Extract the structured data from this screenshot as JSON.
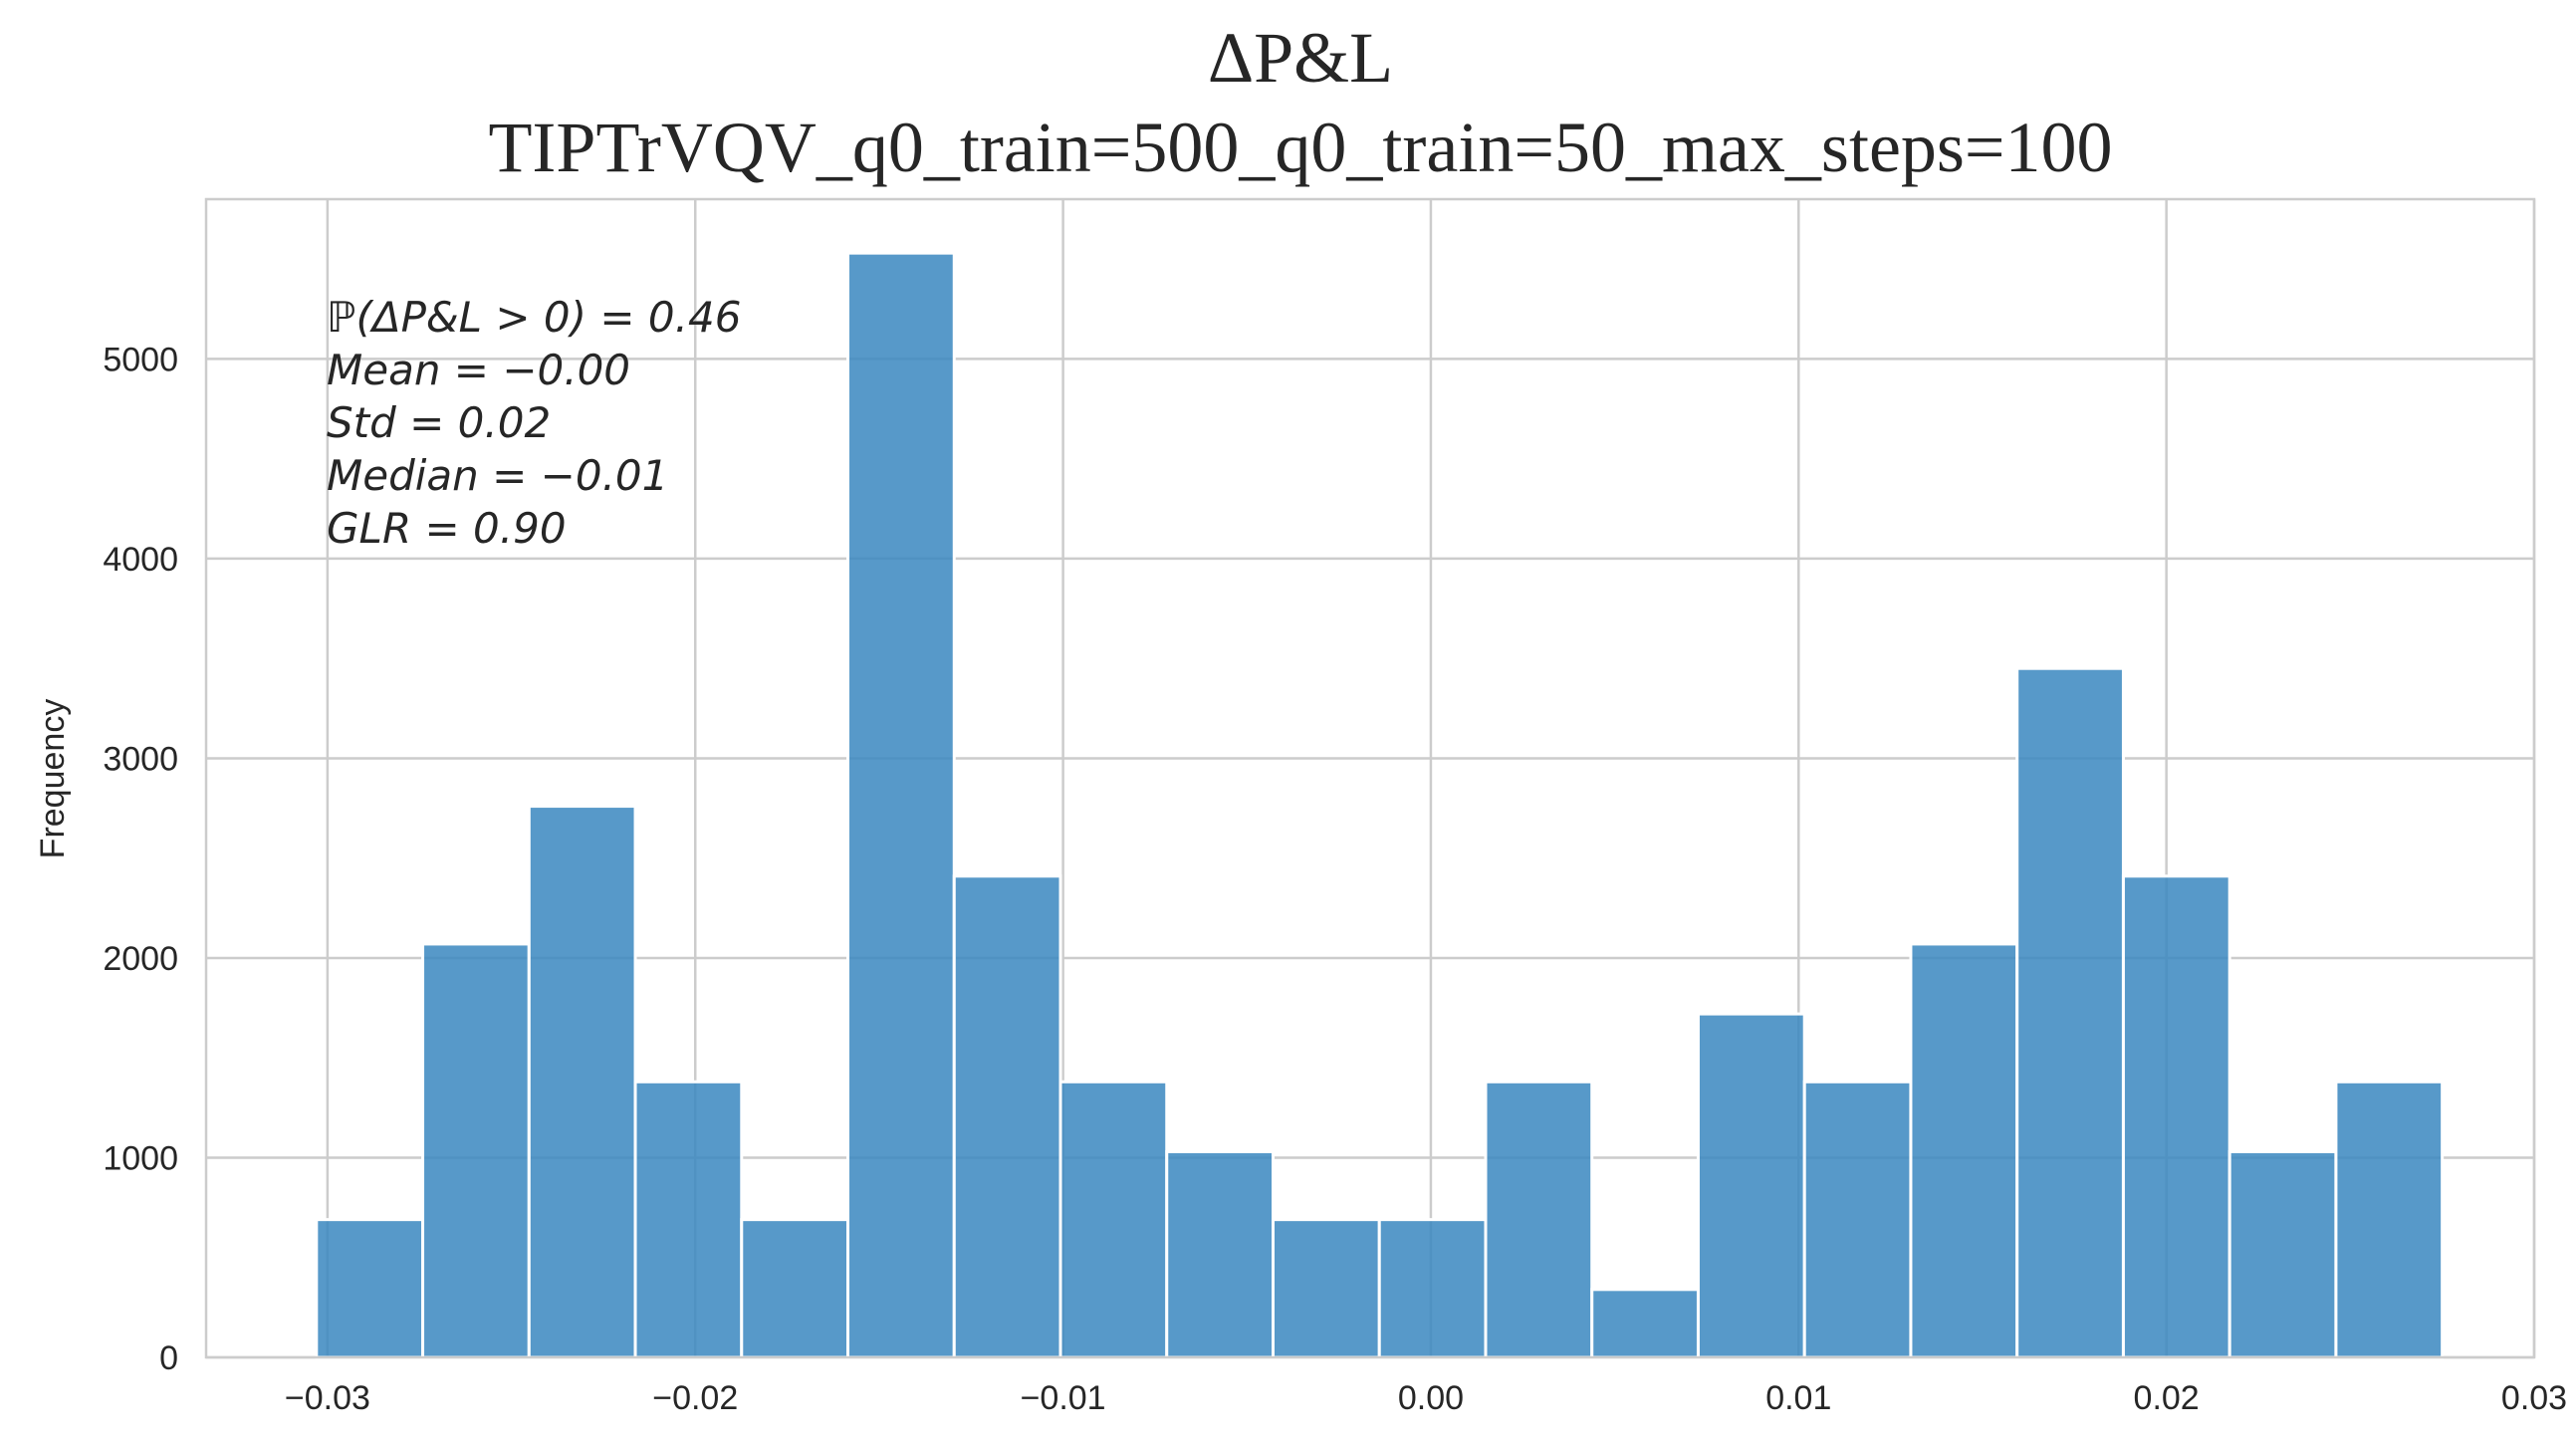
{
  "chart_data": {
    "type": "bar",
    "title": "ΔP&L",
    "subtitle": "TIPTrVQV_q0_train=500_q0_train=50_max_steps=100",
    "xlabel": "",
    "ylabel": "Frequency",
    "xlim": [
      -0.0333,
      0.03
    ],
    "ylim": [
      0,
      5800
    ],
    "grid": true,
    "x_ticks": [
      -0.03,
      -0.02,
      -0.01,
      0.0,
      0.01,
      0.02,
      0.03
    ],
    "x_tick_labels": [
      "−0.03",
      "−0.02",
      "−0.01",
      "0.00",
      "0.01",
      "0.02",
      "0.03"
    ],
    "y_ticks": [
      0,
      1000,
      2000,
      3000,
      4000,
      5000
    ],
    "y_tick_labels": [
      "0",
      "1000",
      "2000",
      "3000",
      "4000",
      "5000"
    ],
    "bin_start": -0.0303,
    "bin_width": 0.00289,
    "values": [
      690,
      2070,
      2760,
      1380,
      690,
      5530,
      2410,
      1380,
      1030,
      690,
      690,
      1380,
      340,
      1720,
      1380,
      2070,
      3450,
      2410,
      1030,
      1380
    ],
    "annotations": [
      "ℙ(ΔP&L > 0) = 0.46",
      "Mean = −0.00",
      "Std = 0.02",
      "Median = −0.01",
      " GLR = 0.90"
    ],
    "colors": {
      "bar": "#3a87c0",
      "grid": "#cccccc",
      "text": "#262626"
    }
  }
}
